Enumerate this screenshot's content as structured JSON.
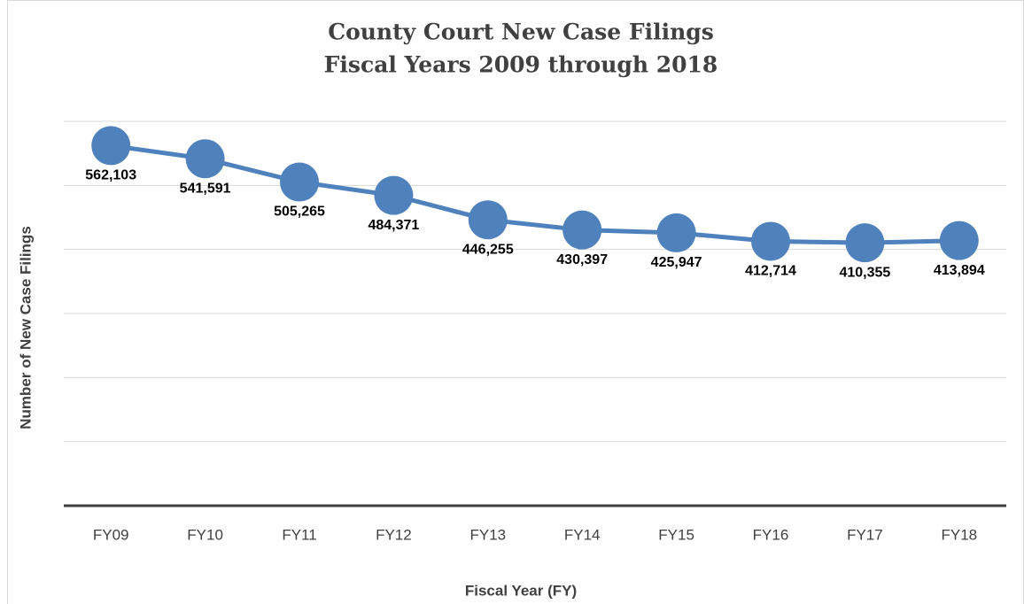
{
  "chart_data": {
    "type": "line",
    "title": "County Court New Case Filings",
    "subtitle": "Fiscal Years 2009 through 2018",
    "x_label": "Fiscal Year (FY)",
    "y_label": "Number of New Case Filings",
    "categories": [
      "FY09",
      "FY10",
      "FY11",
      "FY12",
      "FY13",
      "FY14",
      "FY15",
      "FY16",
      "FY17",
      "FY18"
    ],
    "series": [
      {
        "name": "New Case Filings",
        "color": "#4f81bd",
        "values": [
          562103,
          541591,
          505265,
          484371,
          446255,
          430397,
          425947,
          412714,
          410355,
          413894
        ],
        "value_labels": [
          "562,103",
          "541,591",
          "505,265",
          "484,371",
          "446,255",
          "430,397",
          "425,947",
          "412,714",
          "410,355",
          "413,894"
        ]
      }
    ],
    "ylim": [
      0,
      600000
    ],
    "yticks": [
      0,
      100000,
      200000,
      300000,
      400000,
      500000,
      600000
    ],
    "grid": true
  }
}
